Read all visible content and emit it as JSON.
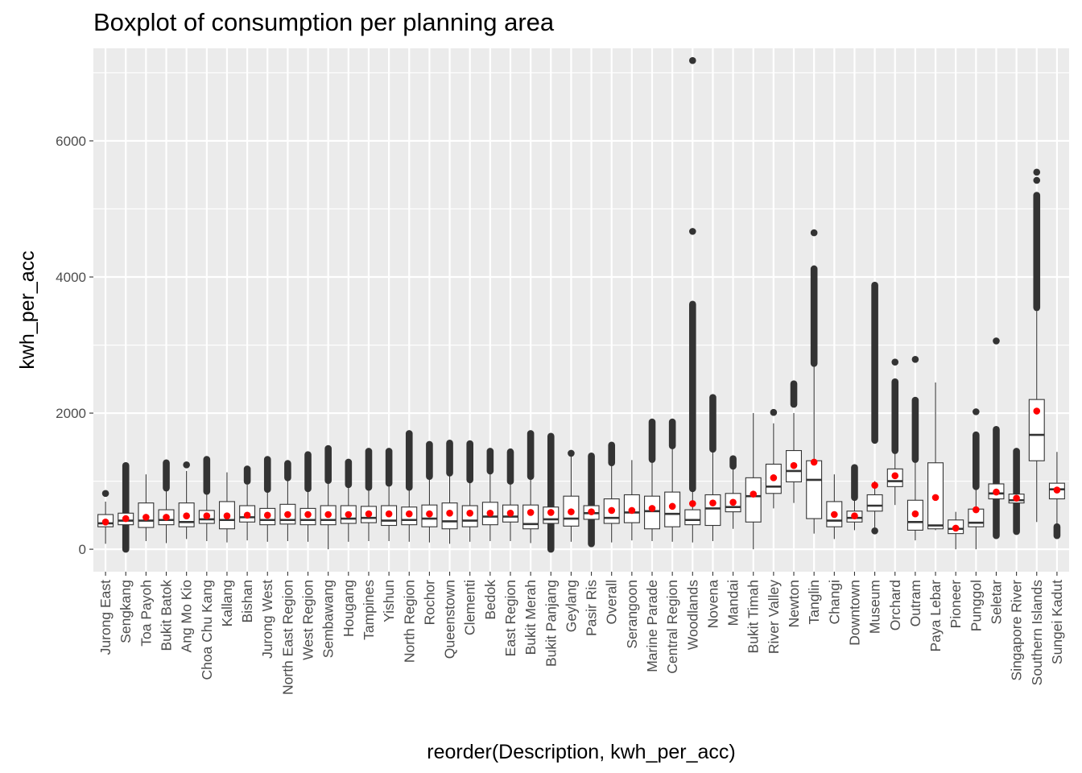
{
  "chart_data": {
    "type": "boxplot",
    "title": "Boxplot of consumption per planning area",
    "xlabel": "reorder(Description, kwh_per_acc)",
    "ylabel": "kwh_per_acc",
    "ylim": [
      -330,
      7360
    ],
    "yticks": [
      0,
      2000,
      4000,
      6000
    ],
    "grid": true,
    "legend": "none",
    "colors": {
      "panel": "#EBEBEB",
      "grid_major": "#FFFFFF",
      "box_fill": "#FFFFFF",
      "box_line": "#333333",
      "mean_point": "#FF0000",
      "outlier": "#333333"
    },
    "series": [
      {
        "category": "Jurong East",
        "min": 80,
        "q1": 330,
        "median": 380,
        "q3": 510,
        "max": 700,
        "mean": 400,
        "outlier_range": [
          820,
          820
        ]
      },
      {
        "category": "Sengkang",
        "min": 80,
        "q1": 360,
        "median": 420,
        "q3": 530,
        "max": 760,
        "mean": 450,
        "outlier_range": [
          0,
          1230
        ]
      },
      {
        "category": "Toa Payoh",
        "min": 120,
        "q1": 320,
        "median": 420,
        "q3": 680,
        "max": 1100,
        "mean": 470,
        "outlier_range": null
      },
      {
        "category": "Bukit Batok",
        "min": 90,
        "q1": 360,
        "median": 430,
        "q3": 580,
        "max": 880,
        "mean": 470,
        "outlier_range": [
          900,
          1270
        ]
      },
      {
        "category": "Ang Mo Kio",
        "min": 150,
        "q1": 330,
        "median": 400,
        "q3": 680,
        "max": 1150,
        "mean": 490,
        "outlier_range": [
          1240,
          1240
        ]
      },
      {
        "category": "Choa Chu Kang",
        "min": 120,
        "q1": 380,
        "median": 440,
        "q3": 570,
        "max": 840,
        "mean": 490,
        "outlier_range": [
          850,
          1320
        ]
      },
      {
        "category": "Kallang",
        "min": 100,
        "q1": 300,
        "median": 430,
        "q3": 700,
        "max": 1130,
        "mean": 490,
        "outlier_range": null
      },
      {
        "category": "Bishan",
        "min": 130,
        "q1": 400,
        "median": 470,
        "q3": 640,
        "max": 950,
        "mean": 500,
        "outlier_range": [
          1000,
          1180
        ]
      },
      {
        "category": "Jurong West",
        "min": 110,
        "q1": 360,
        "median": 430,
        "q3": 600,
        "max": 870,
        "mean": 500,
        "outlier_range": [
          880,
          1320
        ]
      },
      {
        "category": "North East Region",
        "min": 120,
        "q1": 370,
        "median": 430,
        "q3": 660,
        "max": 1000,
        "mean": 510,
        "outlier_range": [
          1050,
          1260
        ]
      },
      {
        "category": "West Region",
        "min": 110,
        "q1": 360,
        "median": 430,
        "q3": 600,
        "max": 880,
        "mean": 510,
        "outlier_range": [
          890,
          1390
        ]
      },
      {
        "category": "Sembawang",
        "min": 0,
        "q1": 360,
        "median": 430,
        "q3": 640,
        "max": 1000,
        "mean": 510,
        "outlier_range": [
          1010,
          1480
        ]
      },
      {
        "category": "Hougang",
        "min": 110,
        "q1": 380,
        "median": 450,
        "q3": 640,
        "max": 930,
        "mean": 510,
        "outlier_range": [
          950,
          1280
        ]
      },
      {
        "category": "Tampines",
        "min": 120,
        "q1": 390,
        "median": 460,
        "q3": 630,
        "max": 900,
        "mean": 520,
        "outlier_range": [
          910,
          1440
        ]
      },
      {
        "category": "Yishun",
        "min": 120,
        "q1": 350,
        "median": 420,
        "q3": 640,
        "max": 960,
        "mean": 520,
        "outlier_range": [
          970,
          1440
        ]
      },
      {
        "category": "North Region",
        "min": 110,
        "q1": 360,
        "median": 430,
        "q3": 620,
        "max": 900,
        "mean": 520,
        "outlier_range": [
          910,
          1700
        ]
      },
      {
        "category": "Rochor",
        "min": 100,
        "q1": 330,
        "median": 450,
        "q3": 650,
        "max": 1050,
        "mean": 520,
        "outlier_range": [
          1070,
          1540
        ]
      },
      {
        "category": "Queenstown",
        "min": 80,
        "q1": 300,
        "median": 410,
        "q3": 680,
        "max": 1100,
        "mean": 530,
        "outlier_range": [
          1120,
          1560
        ]
      },
      {
        "category": "Clementi",
        "min": 110,
        "q1": 330,
        "median": 420,
        "q3": 640,
        "max": 1000,
        "mean": 530,
        "outlier_range": [
          1020,
          1550
        ]
      },
      {
        "category": "Bedok",
        "min": 120,
        "q1": 360,
        "median": 480,
        "q3": 690,
        "max": 1130,
        "mean": 530,
        "outlier_range": [
          1150,
          1440
        ]
      },
      {
        "category": "East Region",
        "min": 120,
        "q1": 400,
        "median": 480,
        "q3": 650,
        "max": 980,
        "mean": 530,
        "outlier_range": [
          1000,
          1430
        ]
      },
      {
        "category": "Bukit Merah",
        "min": 90,
        "q1": 300,
        "median": 370,
        "q3": 650,
        "max": 1060,
        "mean": 540,
        "outlier_range": [
          1070,
          1700
        ]
      },
      {
        "category": "Bukit Panjang",
        "min": 110,
        "q1": 380,
        "median": 440,
        "q3": 620,
        "max": 860,
        "mean": 540,
        "outlier_range": [
          0,
          1660
        ]
      },
      {
        "category": "Geylang",
        "min": 110,
        "q1": 340,
        "median": 450,
        "q3": 780,
        "max": 1380,
        "mean": 550,
        "outlier_range": [
          1410,
          1410
        ]
      },
      {
        "category": "Pasir Ris",
        "min": 110,
        "q1": 440,
        "median": 530,
        "q3": 640,
        "max": 900,
        "mean": 550,
        "outlier_range": [
          80,
          1370
        ]
      },
      {
        "category": "Overall",
        "min": 100,
        "q1": 380,
        "median": 460,
        "q3": 740,
        "max": 1250,
        "mean": 570,
        "outlier_range": [
          1270,
          1530
        ]
      },
      {
        "category": "Serangoon",
        "min": 130,
        "q1": 390,
        "median": 540,
        "q3": 800,
        "max": 1310,
        "mean": 570,
        "outlier_range": null
      },
      {
        "category": "Marine Parade",
        "min": 120,
        "q1": 300,
        "median": 560,
        "q3": 780,
        "max": 1300,
        "mean": 600,
        "outlier_range": [
          1320,
          1870
        ]
      },
      {
        "category": "Central Region",
        "min": 110,
        "q1": 330,
        "median": 520,
        "q3": 840,
        "max": 1500,
        "mean": 630,
        "outlier_range": [
          1520,
          1870
        ]
      },
      {
        "category": "Woodlands",
        "min": 100,
        "q1": 360,
        "median": 430,
        "q3": 580,
        "max": 870,
        "mean": 670,
        "outlier_range": [
          890,
          3600
        ],
        "outliers": [
          4670,
          7180
        ]
      },
      {
        "category": "Novena",
        "min": 120,
        "q1": 350,
        "median": 600,
        "q3": 800,
        "max": 1450,
        "mean": 680,
        "outlier_range": [
          1470,
          2230
        ]
      },
      {
        "category": "Mandai",
        "min": 300,
        "q1": 550,
        "median": 620,
        "q3": 820,
        "max": 1200,
        "mean": 690,
        "outlier_range": [
          1220,
          1330
        ]
      },
      {
        "category": "Bukit Timah",
        "min": 0,
        "q1": 400,
        "median": 780,
        "q3": 1050,
        "max": 2000,
        "mean": 810,
        "outlier_range": null
      },
      {
        "category": "River Valley",
        "min": 600,
        "q1": 820,
        "median": 920,
        "q3": 1250,
        "max": 1850,
        "mean": 1050,
        "outlier_range": [
          2010,
          2010
        ]
      },
      {
        "category": "Newton",
        "min": 680,
        "q1": 990,
        "median": 1150,
        "q3": 1450,
        "max": 2000,
        "mean": 1230,
        "outlier_range": [
          2130,
          2430
        ]
      },
      {
        "category": "Tanglin",
        "min": 230,
        "q1": 450,
        "median": 1020,
        "q3": 1300,
        "max": 2700,
        "mean": 1280,
        "outlier_range": [
          2730,
          4120
        ],
        "outliers": [
          4650
        ]
      },
      {
        "category": "Changi",
        "min": 150,
        "q1": 330,
        "median": 420,
        "q3": 700,
        "max": 1100,
        "mean": 510,
        "outlier_range": null
      },
      {
        "category": "Downtown",
        "min": 280,
        "q1": 400,
        "median": 460,
        "q3": 560,
        "max": 740,
        "mean": 490,
        "outlier_range": [
          760,
          1200
        ]
      },
      {
        "category": "Museum",
        "min": 290,
        "q1": 560,
        "median": 640,
        "q3": 800,
        "max": 1000,
        "mean": 940,
        "outlier_range": [
          1600,
          3880
        ],
        "outliers": [
          270
        ]
      },
      {
        "category": "Orchard",
        "min": 650,
        "q1": 920,
        "median": 1000,
        "q3": 1180,
        "max": 1430,
        "mean": 1080,
        "outlier_range": [
          1450,
          2460
        ],
        "outliers": [
          2750
        ]
      },
      {
        "category": "Outram",
        "min": 130,
        "q1": 280,
        "median": 400,
        "q3": 720,
        "max": 1300,
        "mean": 520,
        "outlier_range": [
          1320,
          2190
        ],
        "outliers": [
          2790
        ]
      },
      {
        "category": "Paya Lebar",
        "min": 280,
        "q1": 300,
        "median": 350,
        "q3": 1270,
        "max": 2450,
        "mean": 760,
        "outlier_range": null
      },
      {
        "category": "Pioneer",
        "min": 0,
        "q1": 230,
        "median": 300,
        "q3": 430,
        "max": 550,
        "mean": 310,
        "outlier_range": null
      },
      {
        "category": "Punggol",
        "min": 0,
        "q1": 330,
        "median": 390,
        "q3": 590,
        "max": 900,
        "mean": 580,
        "outlier_range": [
          920,
          1680
        ],
        "outliers": [
          2020
        ]
      },
      {
        "category": "Seletar",
        "min": 300,
        "q1": 740,
        "median": 820,
        "q3": 960,
        "max": 1200,
        "mean": 840,
        "outlier_range": [
          200,
          1760
        ],
        "outliers": [
          3060
        ]
      },
      {
        "category": "Singapore River",
        "min": 300,
        "q1": 680,
        "median": 720,
        "q3": 810,
        "max": 960,
        "mean": 750,
        "outlier_range": [
          260,
          1440
        ]
      },
      {
        "category": "Southern Islands",
        "min": 400,
        "q1": 1300,
        "median": 1680,
        "q3": 2200,
        "max": 3500,
        "mean": 2030,
        "outlier_range": [
          3550,
          5200
        ],
        "outliers": [
          5420,
          5540
        ]
      },
      {
        "category": "Sungei Kadut",
        "min": 300,
        "q1": 740,
        "median": 880,
        "q3": 970,
        "max": 1430,
        "mean": 870,
        "outlier_range": [
          200,
          330
        ]
      }
    ]
  }
}
